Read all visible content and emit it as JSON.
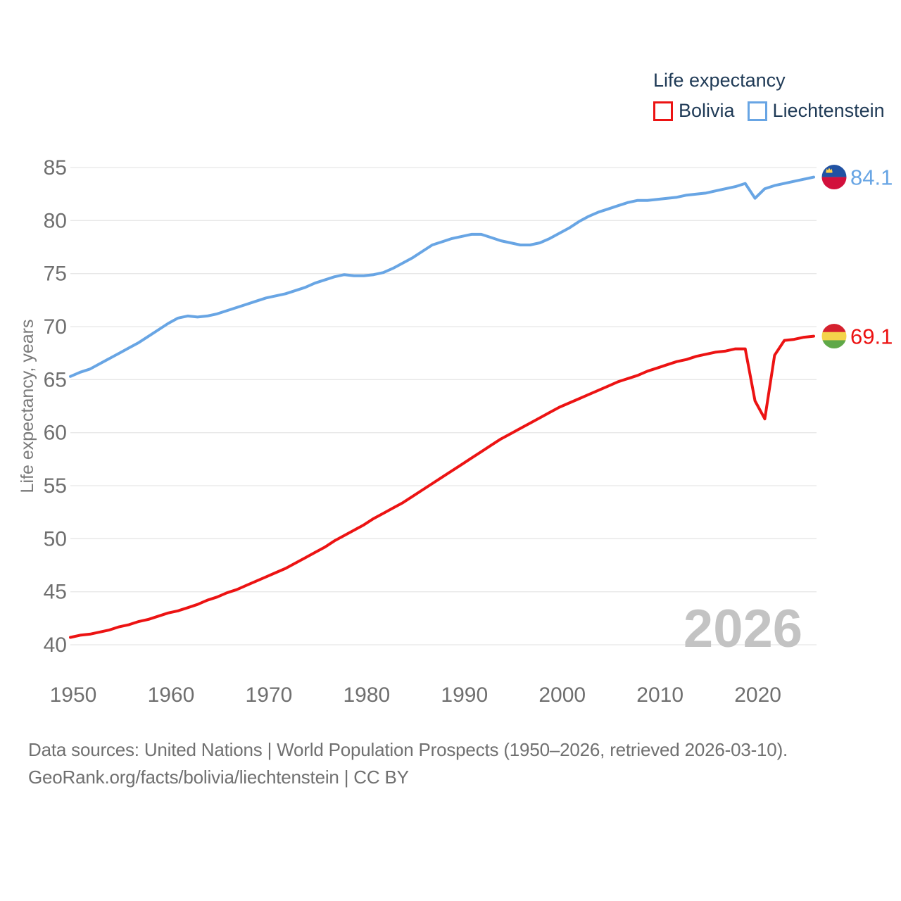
{
  "legend": {
    "title": "Life expectancy",
    "items": [
      {
        "label": "Bolivia",
        "color": "#ec1313"
      },
      {
        "label": "Liechtenstein",
        "color": "#68a5e4"
      }
    ]
  },
  "watermark": "2026",
  "footer": {
    "line1": "Data sources: United Nations | World Population Prospects (1950–2026, retrieved 2026-03-10).",
    "line2": "GeoRank.org/facts/bolivia/liechtenstein | CC BY"
  },
  "flags": {
    "bolivia": {
      "stripes": [
        "#d5212e",
        "#f4d44b",
        "#5fa848"
      ]
    },
    "liechtenstein": {
      "top": "#2152a3",
      "bottom": "#d2103c",
      "crown": "#ffd24a"
    }
  },
  "chart_data": {
    "type": "line",
    "title": "Life expectancy",
    "xlabel": "",
    "ylabel": "Life expectancy, years",
    "xlim": [
      1950,
      2026
    ],
    "ylim": [
      40,
      85
    ],
    "x_ticks": [
      1950,
      1960,
      1970,
      1980,
      1990,
      2000,
      2010,
      2020
    ],
    "y_ticks": [
      85,
      80,
      75,
      70,
      65,
      60,
      55,
      50,
      45,
      40
    ],
    "grid": "horizontal",
    "legend_position": "top-right",
    "x": [
      1950,
      1951,
      1952,
      1953,
      1954,
      1955,
      1956,
      1957,
      1958,
      1959,
      1960,
      1961,
      1962,
      1963,
      1964,
      1965,
      1966,
      1967,
      1968,
      1969,
      1970,
      1971,
      1972,
      1973,
      1974,
      1975,
      1976,
      1977,
      1978,
      1979,
      1980,
      1981,
      1982,
      1983,
      1984,
      1985,
      1986,
      1987,
      1988,
      1989,
      1990,
      1991,
      1992,
      1993,
      1994,
      1995,
      1996,
      1997,
      1998,
      1999,
      2000,
      2001,
      2002,
      2003,
      2004,
      2005,
      2006,
      2007,
      2008,
      2009,
      2010,
      2011,
      2012,
      2013,
      2014,
      2015,
      2016,
      2017,
      2018,
      2019,
      2020,
      2021,
      2022,
      2023,
      2024,
      2025,
      2026
    ],
    "series": [
      {
        "name": "Bolivia",
        "color": "#ec1313",
        "end_label": "69.1",
        "end_value": 69.1,
        "values": [
          40.7,
          40.9,
          41.0,
          41.2,
          41.4,
          41.7,
          41.9,
          42.2,
          42.4,
          42.7,
          43.0,
          43.2,
          43.5,
          43.8,
          44.2,
          44.5,
          44.9,
          45.2,
          45.6,
          46.0,
          46.4,
          46.8,
          47.2,
          47.7,
          48.2,
          48.7,
          49.2,
          49.8,
          50.3,
          50.8,
          51.3,
          51.9,
          52.4,
          52.9,
          53.4,
          54.0,
          54.6,
          55.2,
          55.8,
          56.4,
          57.0,
          57.6,
          58.2,
          58.8,
          59.4,
          59.9,
          60.4,
          60.9,
          61.4,
          61.9,
          62.4,
          62.8,
          63.2,
          63.6,
          64.0,
          64.4,
          64.8,
          65.1,
          65.4,
          65.8,
          66.1,
          66.4,
          66.7,
          66.9,
          67.2,
          67.4,
          67.6,
          67.7,
          67.9,
          67.9,
          63.0,
          61.3,
          67.3,
          68.7,
          68.8,
          69.0,
          69.1
        ]
      },
      {
        "name": "Liechtenstein",
        "color": "#68a5e4",
        "end_label": "84.1",
        "end_value": 84.1,
        "values": [
          65.3,
          65.7,
          66.0,
          66.5,
          67.0,
          67.5,
          68.0,
          68.5,
          69.1,
          69.7,
          70.3,
          70.8,
          71.0,
          70.9,
          71.0,
          71.2,
          71.5,
          71.8,
          72.1,
          72.4,
          72.7,
          72.9,
          73.1,
          73.4,
          73.7,
          74.1,
          74.4,
          74.7,
          74.9,
          74.8,
          74.8,
          74.9,
          75.1,
          75.5,
          76.0,
          76.5,
          77.1,
          77.7,
          78.0,
          78.3,
          78.5,
          78.7,
          78.7,
          78.4,
          78.1,
          77.9,
          77.7,
          77.7,
          77.9,
          78.3,
          78.8,
          79.3,
          79.9,
          80.4,
          80.8,
          81.1,
          81.4,
          81.7,
          81.9,
          81.9,
          82.0,
          82.1,
          82.2,
          82.4,
          82.5,
          82.6,
          82.8,
          83.0,
          83.2,
          83.5,
          82.1,
          83.0,
          83.3,
          83.5,
          83.7,
          83.9,
          84.1
        ]
      }
    ]
  }
}
